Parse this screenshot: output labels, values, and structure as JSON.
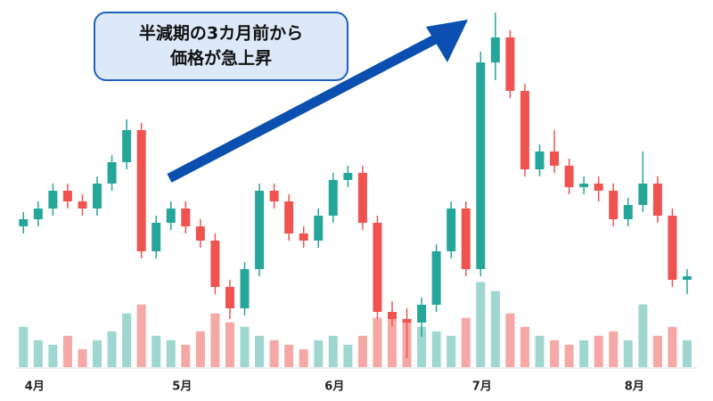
{
  "chart_data": {
    "type": "candlestick",
    "annotation": [
      "半減期の3カ月前から",
      "価格が急上昇"
    ],
    "x": [
      -3,
      0,
      3,
      6,
      9,
      12,
      15,
      18,
      21,
      24,
      27,
      30,
      33,
      36,
      39,
      42,
      45,
      48,
      51,
      54,
      57,
      60,
      63,
      66,
      69,
      72,
      75,
      78,
      81,
      84,
      87,
      90,
      93,
      96,
      99,
      102,
      105,
      108,
      111,
      114,
      117,
      120,
      123,
      126,
      129,
      132
    ],
    "open": [
      39,
      41,
      44,
      49,
      46,
      44,
      51,
      57,
      66,
      32,
      40,
      44,
      39,
      35,
      22,
      16,
      27,
      49,
      46,
      37,
      35,
      42,
      52,
      54,
      40,
      15,
      13,
      12,
      17,
      32,
      44,
      27,
      85,
      92,
      77,
      55,
      60,
      56,
      50,
      51,
      49,
      41,
      45,
      51,
      42,
      24
    ],
    "high": [
      43,
      46,
      51,
      51,
      48,
      53,
      59,
      69,
      68,
      42,
      46,
      46,
      41,
      37,
      24,
      29,
      51,
      51,
      48,
      39,
      44,
      54,
      56,
      56,
      42,
      18,
      16,
      19,
      34,
      46,
      46,
      88,
      99,
      94,
      79,
      62,
      66,
      58,
      53,
      53,
      51,
      47,
      60,
      53,
      44,
      27
    ],
    "low": [
      37,
      39,
      42,
      44,
      42,
      42,
      49,
      55,
      30,
      30,
      38,
      37,
      33,
      20,
      13,
      14,
      25,
      44,
      35,
      33,
      33,
      40,
      50,
      38,
      13,
      11,
      2,
      8,
      15,
      30,
      25,
      25,
      80,
      75,
      53,
      53,
      54,
      48,
      48,
      46,
      39,
      39,
      43,
      40,
      22,
      20
    ],
    "close": [
      41,
      44,
      49,
      46,
      44,
      51,
      57,
      66,
      32,
      40,
      44,
      39,
      35,
      22,
      16,
      27,
      49,
      46,
      37,
      35,
      42,
      52,
      54,
      40,
      15,
      13,
      12,
      17,
      32,
      44,
      27,
      85,
      92,
      77,
      55,
      60,
      56,
      50,
      51,
      49,
      41,
      45,
      51,
      42,
      24,
      25
    ],
    "volume": [
      45,
      30,
      25,
      35,
      20,
      30,
      40,
      60,
      70,
      35,
      30,
      25,
      40,
      60,
      50,
      45,
      35,
      30,
      25,
      20,
      30,
      35,
      25,
      35,
      55,
      60,
      50,
      45,
      40,
      35,
      55,
      95,
      85,
      60,
      45,
      35,
      30,
      25,
      30,
      35,
      40,
      30,
      70,
      35,
      45,
      30
    ],
    "xlim": [
      -4.5,
      134
    ],
    "xticks": [
      {
        "value": 0,
        "label": "4月"
      },
      {
        "value": 30,
        "label": "5月"
      },
      {
        "value": 61,
        "label": "6月"
      },
      {
        "value": 91,
        "label": "7月"
      },
      {
        "value": 122,
        "label": "8月"
      }
    ],
    "ylim": [
      0,
      100
    ],
    "y2lim": [
      0,
      400
    ],
    "up_color": "#26a69a",
    "down_color": "#ef5350",
    "up_volume_color": "#9fd6cf",
    "down_volume_color": "#f5a8a6"
  }
}
